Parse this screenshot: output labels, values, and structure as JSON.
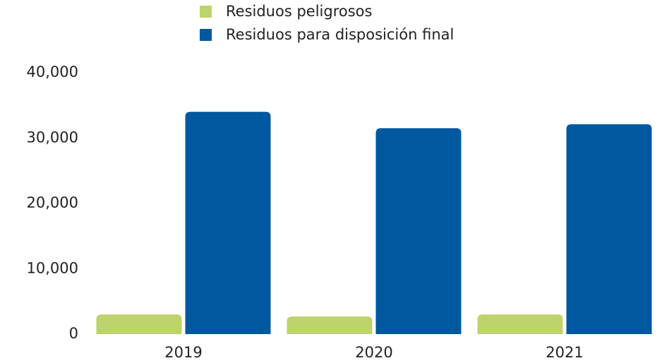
{
  "chart_data": {
    "type": "bar",
    "categories": [
      "2019",
      "2020",
      "2021"
    ],
    "series": [
      {
        "name": "Residuos peligrosos",
        "color": "#bdd36b",
        "values": [
          3000,
          2700,
          3000
        ]
      },
      {
        "name": "Residuos para disposición final",
        "color": "#00589f",
        "values": [
          34000,
          31500,
          32100
        ]
      }
    ],
    "ylim": [
      0,
      40000
    ],
    "yticks": [
      0,
      {
        "value": 10000,
        "label": "10,000"
      },
      {
        "value": 20000,
        "label": "20,000"
      },
      {
        "value": 30000,
        "label": "30,000"
      },
      {
        "value": 40000,
        "label": "40,000"
      }
    ],
    "legend": "top",
    "grid": false
  }
}
